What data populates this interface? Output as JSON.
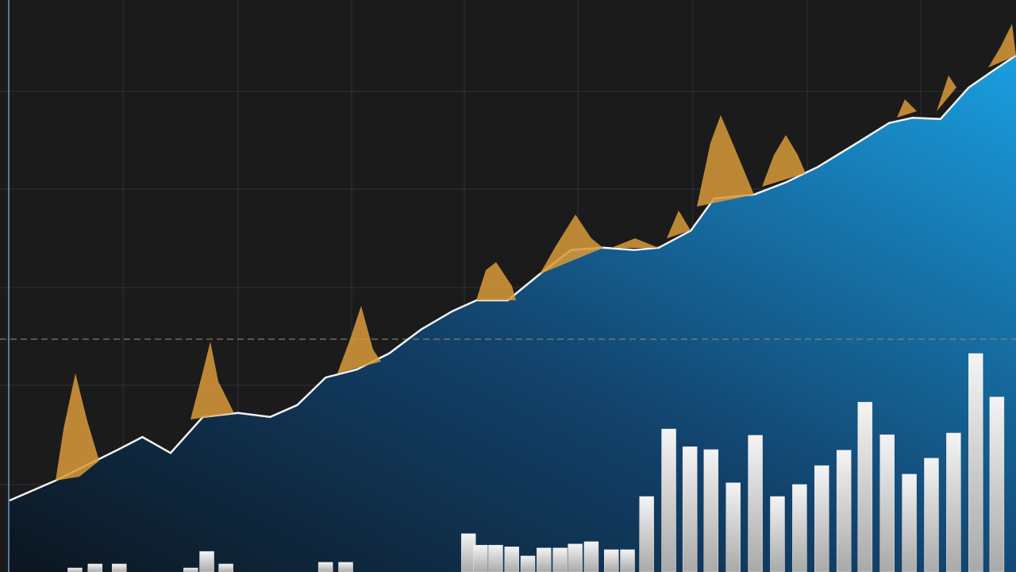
{
  "chart_data": {
    "type": "area",
    "xlim": [
      0,
      100
    ],
    "ylim": [
      0,
      100
    ],
    "line_color": "#f2f2f2",
    "area_color": "#1a9ee0",
    "x": [
      0,
      4.6,
      8.5,
      10.9,
      13.2,
      16.0,
      19.2,
      22.7,
      25.9,
      28.6,
      31.4,
      34.5,
      37.7,
      40.9,
      44.0,
      46.4,
      49.5,
      52.7,
      55.8,
      59.0,
      62.1,
      64.5,
      67.7,
      70.0,
      74.0,
      77.1,
      80.3,
      84.2,
      87.4,
      89.7,
      92.5,
      95.3,
      97.6,
      100
    ],
    "values": [
      12.5,
      16.0,
      19.4,
      21.5,
      23.6,
      20.8,
      27.1,
      27.8,
      27.1,
      29.2,
      34.0,
      35.4,
      38.2,
      42.4,
      45.6,
      47.5,
      47.5,
      52.1,
      56.3,
      56.7,
      56.3,
      56.7,
      59.7,
      65.3,
      66.0,
      68.1,
      70.8,
      75.0,
      78.5,
      79.4,
      79.2,
      84.7,
      87.5,
      90.3
    ],
    "bars": {
      "color": "#e6e6e6",
      "x": [
        6.5,
        8.5,
        10.9,
        18.0,
        19.6,
        21.5,
        31.4,
        33.4,
        45.6,
        46.8,
        48.3,
        49.9,
        51.5,
        53.1,
        54.7,
        56.2,
        57.8,
        59.8,
        61.4,
        63.3,
        65.5,
        67.6,
        69.7,
        71.9,
        74.1,
        76.3,
        78.5,
        80.7,
        82.9,
        85.0,
        87.2,
        89.4,
        91.6,
        93.8,
        96.0,
        98.1
      ],
      "values": [
        0.7,
        1.4,
        1.4,
        0.7,
        3.6,
        1.4,
        1.7,
        1.7,
        6.7,
        4.7,
        4.7,
        4.4,
        2.8,
        4.2,
        4.2,
        4.9,
        5.3,
        3.9,
        3.9,
        13.2,
        25.0,
        21.9,
        21.4,
        15.6,
        23.9,
        13.2,
        15.3,
        18.6,
        21.3,
        29.7,
        24.0,
        17.1,
        19.9,
        24.3,
        38.2,
        30.6
      ]
    },
    "reference_line": 40.7
  }
}
